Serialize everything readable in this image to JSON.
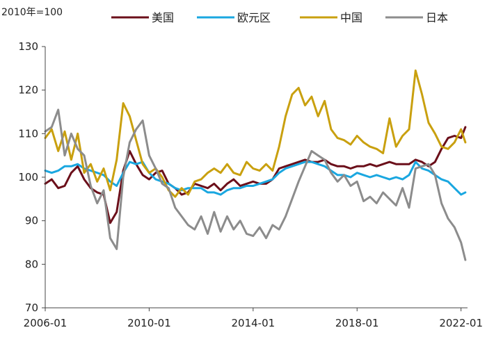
{
  "chart_data": {
    "type": "line",
    "unit_label": "2010年=100",
    "x_ticks": [
      "2006-01",
      "2010-01",
      "2014-01",
      "2018-01",
      "2022-01"
    ],
    "xlim": [
      "2006-01",
      "2022-04"
    ],
    "ylim": [
      70,
      130
    ],
    "y_ticks": [
      70,
      80,
      90,
      100,
      110,
      120,
      130
    ],
    "grid": false,
    "legend_position": "top",
    "series": [
      {
        "name": "美国",
        "color": "#6b0f1a",
        "points": [
          [
            "2006-01",
            98.5
          ],
          [
            "2006-04",
            99.5
          ],
          [
            "2006-07",
            97.5
          ],
          [
            "2006-10",
            98.0
          ],
          [
            "2007-01",
            101.0
          ],
          [
            "2007-04",
            102.5
          ],
          [
            "2007-07",
            99.5
          ],
          [
            "2007-10",
            97.5
          ],
          [
            "2008-01",
            96.5
          ],
          [
            "2008-04",
            96.0
          ],
          [
            "2008-07",
            89.5
          ],
          [
            "2008-10",
            92.0
          ],
          [
            "2009-01",
            101.5
          ],
          [
            "2009-04",
            106.0
          ],
          [
            "2009-07",
            103.0
          ],
          [
            "2009-10",
            100.5
          ],
          [
            "2010-01",
            99.5
          ],
          [
            "2010-04",
            101.0
          ],
          [
            "2010-07",
            101.5
          ],
          [
            "2010-10",
            98.5
          ],
          [
            "2011-01",
            97.5
          ],
          [
            "2011-04",
            96.0
          ],
          [
            "2011-07",
            96.5
          ],
          [
            "2011-10",
            98.5
          ],
          [
            "2012-01",
            98.0
          ],
          [
            "2012-04",
            97.5
          ],
          [
            "2012-07",
            98.5
          ],
          [
            "2012-10",
            97.0
          ],
          [
            "2013-01",
            98.5
          ],
          [
            "2013-04",
            99.5
          ],
          [
            "2013-07",
            98.0
          ],
          [
            "2013-10",
            98.5
          ],
          [
            "2014-01",
            99.0
          ],
          [
            "2014-04",
            98.5
          ],
          [
            "2014-07",
            98.5
          ],
          [
            "2014-10",
            99.5
          ],
          [
            "2015-01",
            102.0
          ],
          [
            "2015-04",
            102.5
          ],
          [
            "2015-07",
            103.0
          ],
          [
            "2015-10",
            103.5
          ],
          [
            "2016-01",
            104.0
          ],
          [
            "2016-04",
            103.5
          ],
          [
            "2016-07",
            103.5
          ],
          [
            "2016-10",
            104.0
          ],
          [
            "2017-01",
            103.0
          ],
          [
            "2017-04",
            102.5
          ],
          [
            "2017-07",
            102.5
          ],
          [
            "2017-10",
            102.0
          ],
          [
            "2018-01",
            102.5
          ],
          [
            "2018-04",
            102.5
          ],
          [
            "2018-07",
            103.0
          ],
          [
            "2018-10",
            102.5
          ],
          [
            "2019-01",
            103.0
          ],
          [
            "2019-04",
            103.5
          ],
          [
            "2019-07",
            103.0
          ],
          [
            "2019-10",
            103.0
          ],
          [
            "2020-01",
            103.0
          ],
          [
            "2020-04",
            104.0
          ],
          [
            "2020-07",
            103.5
          ],
          [
            "2020-10",
            102.5
          ],
          [
            "2021-01",
            103.5
          ],
          [
            "2021-04",
            106.5
          ],
          [
            "2021-07",
            109.0
          ],
          [
            "2021-10",
            109.5
          ],
          [
            "2022-01",
            109.0
          ],
          [
            "2022-03",
            111.5
          ]
        ]
      },
      {
        "name": "欧元区",
        "color": "#1aa7e0",
        "points": [
          [
            "2006-01",
            101.5
          ],
          [
            "2006-04",
            101.0
          ],
          [
            "2006-07",
            101.5
          ],
          [
            "2006-10",
            102.5
          ],
          [
            "2007-01",
            102.5
          ],
          [
            "2007-04",
            103.0
          ],
          [
            "2007-07",
            102.0
          ],
          [
            "2007-10",
            101.5
          ],
          [
            "2008-01",
            101.0
          ],
          [
            "2008-04",
            100.5
          ],
          [
            "2008-07",
            99.0
          ],
          [
            "2008-10",
            98.0
          ],
          [
            "2009-01",
            101.0
          ],
          [
            "2009-04",
            103.5
          ],
          [
            "2009-07",
            103.0
          ],
          [
            "2009-10",
            103.5
          ],
          [
            "2010-01",
            101.0
          ],
          [
            "2010-04",
            99.5
          ],
          [
            "2010-07",
            99.0
          ],
          [
            "2010-10",
            98.5
          ],
          [
            "2011-01",
            97.5
          ],
          [
            "2011-04",
            97.0
          ],
          [
            "2011-07",
            97.5
          ],
          [
            "2011-10",
            97.5
          ],
          [
            "2012-01",
            97.5
          ],
          [
            "2012-04",
            96.5
          ],
          [
            "2012-07",
            96.5
          ],
          [
            "2012-10",
            96.0
          ],
          [
            "2013-01",
            97.0
          ],
          [
            "2013-04",
            97.5
          ],
          [
            "2013-07",
            97.5
          ],
          [
            "2013-10",
            98.0
          ],
          [
            "2014-01",
            98.0
          ],
          [
            "2014-04",
            98.5
          ],
          [
            "2014-07",
            99.0
          ],
          [
            "2014-10",
            99.5
          ],
          [
            "2015-01",
            101.0
          ],
          [
            "2015-04",
            102.0
          ],
          [
            "2015-07",
            102.5
          ],
          [
            "2015-10",
            103.0
          ],
          [
            "2016-01",
            103.5
          ],
          [
            "2016-04",
            103.5
          ],
          [
            "2016-07",
            103.0
          ],
          [
            "2016-10",
            102.5
          ],
          [
            "2017-01",
            101.5
          ],
          [
            "2017-04",
            100.5
          ],
          [
            "2017-07",
            100.5
          ],
          [
            "2017-10",
            100.0
          ],
          [
            "2018-01",
            101.0
          ],
          [
            "2018-04",
            100.5
          ],
          [
            "2018-07",
            100.0
          ],
          [
            "2018-10",
            100.5
          ],
          [
            "2019-01",
            100.0
          ],
          [
            "2019-04",
            99.5
          ],
          [
            "2019-07",
            100.0
          ],
          [
            "2019-10",
            99.5
          ],
          [
            "2020-01",
            100.5
          ],
          [
            "2020-04",
            103.5
          ],
          [
            "2020-07",
            102.0
          ],
          [
            "2020-10",
            101.5
          ],
          [
            "2021-01",
            100.5
          ],
          [
            "2021-04",
            99.5
          ],
          [
            "2021-07",
            99.0
          ],
          [
            "2021-10",
            97.5
          ],
          [
            "2022-01",
            96.0
          ],
          [
            "2022-03",
            96.5
          ]
        ]
      },
      {
        "name": "中国",
        "color": "#c9a00f",
        "points": [
          [
            "2006-01",
            109.0
          ],
          [
            "2006-04",
            111.0
          ],
          [
            "2006-07",
            106.0
          ],
          [
            "2006-10",
            110.5
          ],
          [
            "2007-01",
            104.0
          ],
          [
            "2007-04",
            110.0
          ],
          [
            "2007-07",
            101.0
          ],
          [
            "2007-10",
            103.0
          ],
          [
            "2008-01",
            99.0
          ],
          [
            "2008-04",
            102.0
          ],
          [
            "2008-07",
            97.0
          ],
          [
            "2008-10",
            104.0
          ],
          [
            "2009-01",
            117.0
          ],
          [
            "2009-04",
            114.0
          ],
          [
            "2009-07",
            108.5
          ],
          [
            "2009-10",
            103.0
          ],
          [
            "2010-01",
            101.0
          ],
          [
            "2010-04",
            102.0
          ],
          [
            "2010-07",
            100.0
          ],
          [
            "2010-10",
            97.0
          ],
          [
            "2011-01",
            95.5
          ],
          [
            "2011-04",
            97.5
          ],
          [
            "2011-07",
            96.0
          ],
          [
            "2011-10",
            99.0
          ],
          [
            "2012-01",
            99.5
          ],
          [
            "2012-04",
            101.0
          ],
          [
            "2012-07",
            102.0
          ],
          [
            "2012-10",
            101.0
          ],
          [
            "2013-01",
            103.0
          ],
          [
            "2013-04",
            101.0
          ],
          [
            "2013-07",
            100.5
          ],
          [
            "2013-10",
            103.5
          ],
          [
            "2014-01",
            102.0
          ],
          [
            "2014-04",
            101.5
          ],
          [
            "2014-07",
            103.0
          ],
          [
            "2014-10",
            101.5
          ],
          [
            "2015-01",
            107.0
          ],
          [
            "2015-04",
            114.0
          ],
          [
            "2015-07",
            119.0
          ],
          [
            "2015-10",
            120.5
          ],
          [
            "2016-01",
            116.5
          ],
          [
            "2016-04",
            118.5
          ],
          [
            "2016-07",
            114.0
          ],
          [
            "2016-10",
            117.5
          ],
          [
            "2017-01",
            111.0
          ],
          [
            "2017-04",
            109.0
          ],
          [
            "2017-07",
            108.5
          ],
          [
            "2017-10",
            107.5
          ],
          [
            "2018-01",
            109.5
          ],
          [
            "2018-04",
            108.0
          ],
          [
            "2018-07",
            107.0
          ],
          [
            "2018-10",
            106.5
          ],
          [
            "2019-01",
            105.5
          ],
          [
            "2019-04",
            113.5
          ],
          [
            "2019-07",
            107.0
          ],
          [
            "2019-10",
            109.5
          ],
          [
            "2020-01",
            111.0
          ],
          [
            "2020-04",
            124.5
          ],
          [
            "2020-07",
            119.0
          ],
          [
            "2020-10",
            112.5
          ],
          [
            "2021-01",
            110.0
          ],
          [
            "2021-04",
            107.0
          ],
          [
            "2021-07",
            106.5
          ],
          [
            "2021-10",
            108.0
          ],
          [
            "2022-01",
            111.0
          ],
          [
            "2022-03",
            108.0
          ]
        ]
      },
      {
        "name": "日本",
        "color": "#8c8c8c",
        "points": [
          [
            "2006-01",
            110.5
          ],
          [
            "2006-04",
            111.5
          ],
          [
            "2006-07",
            115.5
          ],
          [
            "2006-10",
            105.0
          ],
          [
            "2007-01",
            110.0
          ],
          [
            "2007-04",
            106.5
          ],
          [
            "2007-07",
            105.0
          ],
          [
            "2007-10",
            98.0
          ],
          [
            "2008-01",
            94.0
          ],
          [
            "2008-04",
            97.0
          ],
          [
            "2008-07",
            86.0
          ],
          [
            "2008-10",
            83.5
          ],
          [
            "2009-01",
            100.0
          ],
          [
            "2009-04",
            108.0
          ],
          [
            "2009-07",
            111.0
          ],
          [
            "2009-10",
            113.0
          ],
          [
            "2010-01",
            105.0
          ],
          [
            "2010-04",
            102.0
          ],
          [
            "2010-07",
            98.5
          ],
          [
            "2010-10",
            97.5
          ],
          [
            "2011-01",
            93.0
          ],
          [
            "2011-04",
            91.0
          ],
          [
            "2011-07",
            89.0
          ],
          [
            "2011-10",
            88.0
          ],
          [
            "2012-01",
            91.0
          ],
          [
            "2012-04",
            87.0
          ],
          [
            "2012-07",
            92.0
          ],
          [
            "2012-10",
            87.5
          ],
          [
            "2013-01",
            91.0
          ],
          [
            "2013-04",
            88.0
          ],
          [
            "2013-07",
            90.0
          ],
          [
            "2013-10",
            87.0
          ],
          [
            "2014-01",
            86.5
          ],
          [
            "2014-04",
            88.5
          ],
          [
            "2014-07",
            86.0
          ],
          [
            "2014-10",
            89.0
          ],
          [
            "2015-01",
            88.0
          ],
          [
            "2015-04",
            91.0
          ],
          [
            "2015-07",
            95.0
          ],
          [
            "2015-10",
            99.0
          ],
          [
            "2016-01",
            102.5
          ],
          [
            "2016-04",
            106.0
          ],
          [
            "2016-07",
            105.0
          ],
          [
            "2016-10",
            104.0
          ],
          [
            "2017-01",
            101.0
          ],
          [
            "2017-04",
            99.0
          ],
          [
            "2017-07",
            100.5
          ],
          [
            "2017-10",
            98.0
          ],
          [
            "2018-01",
            99.0
          ],
          [
            "2018-04",
            94.5
          ],
          [
            "2018-07",
            95.5
          ],
          [
            "2018-10",
            94.0
          ],
          [
            "2019-01",
            96.5
          ],
          [
            "2019-04",
            95.0
          ],
          [
            "2019-07",
            93.5
          ],
          [
            "2019-10",
            97.5
          ],
          [
            "2020-01",
            93.0
          ],
          [
            "2020-04",
            102.0
          ],
          [
            "2020-07",
            102.5
          ],
          [
            "2020-10",
            103.0
          ],
          [
            "2021-01",
            100.5
          ],
          [
            "2021-04",
            94.0
          ],
          [
            "2021-07",
            90.5
          ],
          [
            "2021-10",
            88.5
          ],
          [
            "2022-01",
            85.0
          ],
          [
            "2022-03",
            81.0
          ]
        ]
      }
    ]
  }
}
